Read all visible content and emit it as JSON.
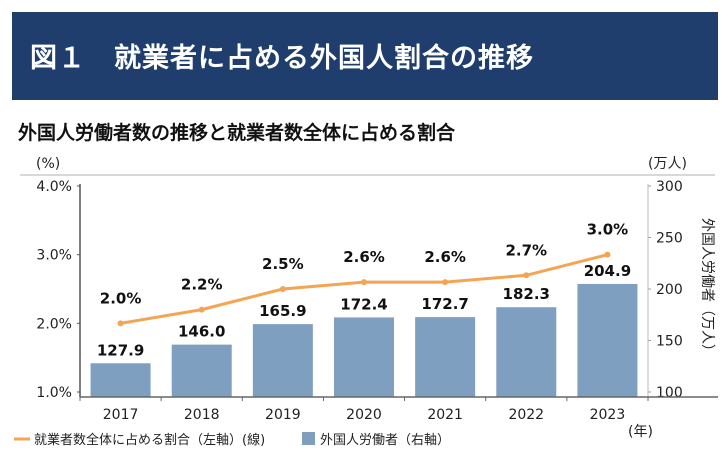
{
  "header": {
    "title": "図１　就業者に占める外国人割合の推移"
  },
  "chart_data": {
    "type": "bar+line",
    "title": "外国人労働者数の推移と就業者数全体に占める割合",
    "categories": [
      "2017",
      "2018",
      "2019",
      "2020",
      "2021",
      "2022",
      "2023"
    ],
    "x_unit": "(年)",
    "left_axis": {
      "unit": "(%)",
      "ticks": [
        "1.0%",
        "2.0%",
        "3.0%",
        "4.0%"
      ],
      "range": [
        1.0,
        4.0
      ]
    },
    "right_axis": {
      "unit": "(万人)",
      "label": "外国人労働者（万人）",
      "ticks": [
        "100",
        "150",
        "200",
        "250",
        "300"
      ],
      "range": [
        100,
        300
      ]
    },
    "series": [
      {
        "name": "外国人労働者（右軸）",
        "type": "bar",
        "axis": "right",
        "color": "#7f9fc0",
        "values": [
          127.9,
          146.0,
          165.9,
          172.4,
          172.7,
          182.3,
          204.9
        ],
        "labels": [
          "127.9",
          "146.0",
          "165.9",
          "172.4",
          "172.7",
          "182.3",
          "204.9"
        ]
      },
      {
        "name": "就業者数全体に占める割合（左軸）(線)",
        "type": "line",
        "axis": "left",
        "color": "#f4a553",
        "values": [
          2.0,
          2.2,
          2.5,
          2.6,
          2.6,
          2.7,
          3.0
        ],
        "labels": [
          "2.0%",
          "2.2%",
          "2.5%",
          "2.6%",
          "2.6%",
          "2.7%",
          "3.0%"
        ]
      }
    ],
    "legend_position": "bottom-left",
    "grid": false
  },
  "colors": {
    "banner": "#1f3e6d",
    "bar": "#7f9fc0",
    "line": "#f4a553"
  }
}
